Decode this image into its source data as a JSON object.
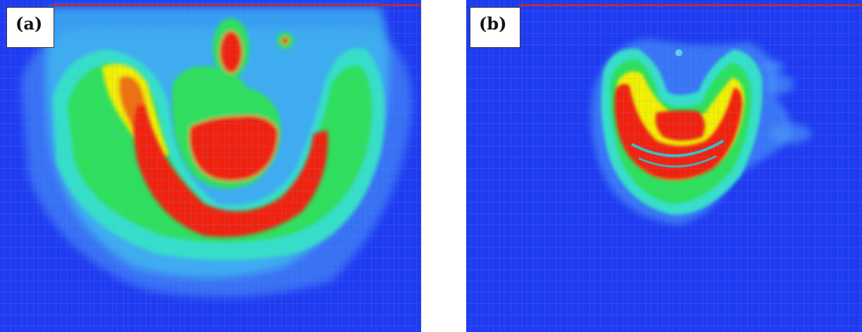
{
  "figure": {
    "panels": [
      {
        "label": "(a)",
        "content": "field-contour-plot"
      },
      {
        "label": "(b)",
        "content": "field-contour-plot"
      }
    ],
    "colors": {
      "background": "#1f3bf0",
      "grid_line": "#6f86ff",
      "surface_line": "#b0303c",
      "cyan": "#3ce6e6",
      "green": "#2ee05a",
      "yellow": "#f2f000",
      "red": "#f02010",
      "label_box_border": "#3a3a3a"
    }
  }
}
